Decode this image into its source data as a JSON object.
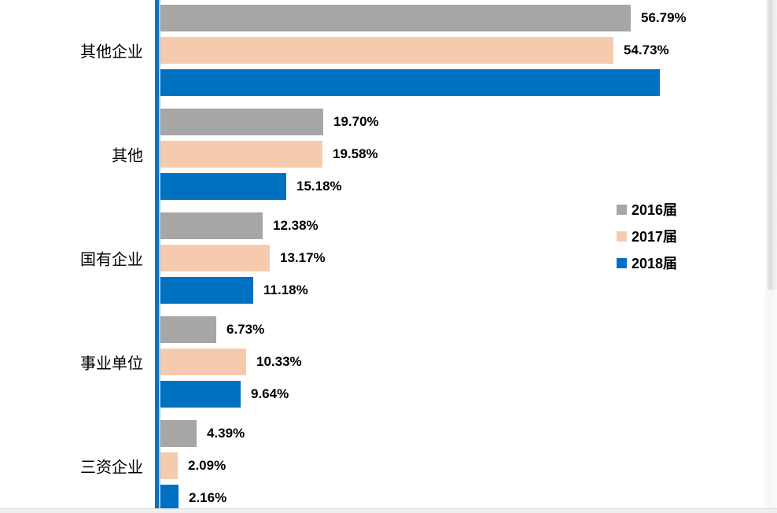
{
  "window": {
    "background": "#ffffff",
    "bottom_strip_color": "#efefef",
    "page_edge_shadow_color": "#d9d9d9"
  },
  "chart_data": {
    "type": "bar",
    "orientation": "horizontal",
    "title": "",
    "xlabel": "",
    "ylabel": "",
    "grid": false,
    "xlim": [
      0,
      62
    ],
    "categories": [
      "其他企业",
      "其他",
      "国有企业",
      "事业单位",
      "三资企业"
    ],
    "series": [
      {
        "name": "2016届",
        "color": "#A6A6A6",
        "values": [
          56.79,
          19.7,
          12.38,
          6.73,
          4.39
        ],
        "labels": [
          "56.79%",
          "19.70%",
          "12.38%",
          "6.73%",
          "4.39%"
        ]
      },
      {
        "name": "2017届",
        "color": "#F6CBAD",
        "values": [
          54.73,
          19.58,
          13.17,
          10.33,
          2.09
        ],
        "labels": [
          "54.73%",
          "19.58%",
          "13.17%",
          "10.33%",
          "2.09%"
        ]
      },
      {
        "name": "2018届",
        "color": "#0070C0",
        "values": [
          60.3,
          15.18,
          11.18,
          9.64,
          2.16
        ],
        "labels": [
          "",
          "15.18%",
          "11.18%",
          "9.64%",
          "2.16%"
        ]
      }
    ],
    "legend": {
      "position": "right-middle",
      "entries": [
        "2016届",
        "2017届",
        "2018届"
      ]
    },
    "axis": {
      "line_color": "#0C70BD",
      "highlight_color": "#A9CCEA"
    }
  }
}
